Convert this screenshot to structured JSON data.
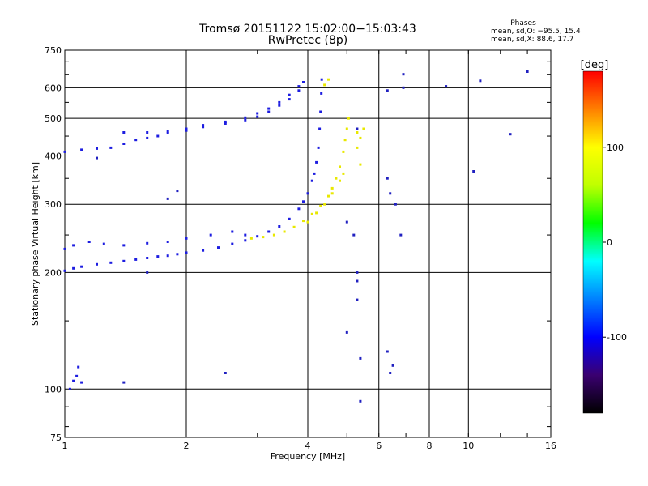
{
  "chart_data": {
    "type": "scatter",
    "title": "Tromsø 20151122 15:02:00−15:03:43",
    "subtitle": "RwPretec (8p)",
    "xlabel": "Frequency [MHz]",
    "ylabel": "Stationary phase Virtual Height [km]",
    "x_scale": "log",
    "y_scale": "log",
    "xlim": [
      1,
      16
    ],
    "ylim": [
      75,
      750
    ],
    "x_ticks": [
      1,
      2,
      4,
      6,
      8,
      10,
      16
    ],
    "y_ticks": [
      75,
      100,
      200,
      300,
      400,
      500,
      600,
      750
    ],
    "grid": true,
    "stats": {
      "heading": "Phases",
      "line_o": "mean, sd,O: −95.5, 15.4",
      "line_x": "mean, sd,X:  88.6, 17.7"
    },
    "colorbar": {
      "label": "[deg]",
      "min": -180,
      "max": 180,
      "ticks": [
        100,
        0,
        -100
      ],
      "colors": [
        "#000000",
        "#3a0070",
        "#0000ff",
        "#0080ff",
        "#00ffff",
        "#00ff00",
        "#c0ff00",
        "#ffff00",
        "#ff8000",
        "#ff0000"
      ]
    },
    "series": [
      {
        "mode": "O",
        "mean_phase": -95.5,
        "color": "#1d1de0",
        "points": [
          [
            1.0,
            202
          ],
          [
            1.05,
            205
          ],
          [
            1.1,
            207
          ],
          [
            1.2,
            210
          ],
          [
            1.3,
            212
          ],
          [
            1.4,
            214
          ],
          [
            1.5,
            216
          ],
          [
            1.6,
            218
          ],
          [
            1.7,
            220
          ],
          [
            1.8,
            221
          ],
          [
            1.9,
            223
          ],
          [
            2.0,
            225
          ],
          [
            2.2,
            228
          ],
          [
            2.4,
            232
          ],
          [
            2.6,
            237
          ],
          [
            2.8,
            242
          ],
          [
            3.0,
            248
          ],
          [
            3.2,
            255
          ],
          [
            3.4,
            263
          ],
          [
            3.6,
            275
          ],
          [
            3.8,
            292
          ],
          [
            3.9,
            305
          ],
          [
            4.0,
            320
          ],
          [
            4.1,
            345
          ],
          [
            4.15,
            360
          ],
          [
            4.2,
            385
          ],
          [
            4.25,
            420
          ],
          [
            4.28,
            470
          ],
          [
            4.3,
            520
          ],
          [
            4.32,
            580
          ],
          [
            4.33,
            630
          ],
          [
            1.0,
            230
          ],
          [
            1.05,
            235
          ],
          [
            1.15,
            240
          ],
          [
            1.25,
            237
          ],
          [
            1.4,
            235
          ],
          [
            1.6,
            238
          ],
          [
            1.8,
            240
          ],
          [
            2.0,
            245
          ],
          [
            2.3,
            250
          ],
          [
            2.6,
            255
          ],
          [
            2.8,
            250
          ],
          [
            1.0,
            410
          ],
          [
            1.1,
            415
          ],
          [
            1.2,
            418
          ],
          [
            1.3,
            420
          ],
          [
            1.4,
            430
          ],
          [
            1.5,
            440
          ],
          [
            1.6,
            445
          ],
          [
            1.7,
            450
          ],
          [
            1.8,
            458
          ],
          [
            2.0,
            465
          ],
          [
            2.2,
            475
          ],
          [
            2.5,
            485
          ],
          [
            2.8,
            495
          ],
          [
            3.0,
            505
          ],
          [
            3.2,
            520
          ],
          [
            3.4,
            540
          ],
          [
            3.6,
            560
          ],
          [
            3.8,
            590
          ],
          [
            3.9,
            620
          ],
          [
            1.4,
            460
          ],
          [
            1.6,
            460
          ],
          [
            1.8,
            463
          ],
          [
            2.0,
            470
          ],
          [
            2.2,
            480
          ],
          [
            2.5,
            490
          ],
          [
            2.8,
            502
          ],
          [
            3.0,
            515
          ],
          [
            3.2,
            530
          ],
          [
            3.4,
            550
          ],
          [
            3.6,
            575
          ],
          [
            3.8,
            605
          ],
          [
            1.03,
            100
          ],
          [
            1.05,
            105
          ],
          [
            1.07,
            108
          ],
          [
            1.1,
            104
          ],
          [
            1.08,
            114
          ]
        ]
      },
      {
        "mode": "X",
        "mean_phase": 88.6,
        "color": "#e8e800",
        "points": [
          [
            2.9,
            245
          ],
          [
            3.1,
            247
          ],
          [
            3.3,
            250
          ],
          [
            3.5,
            255
          ],
          [
            3.7,
            262
          ],
          [
            3.9,
            272
          ],
          [
            4.1,
            283
          ],
          [
            4.3,
            297
          ],
          [
            4.5,
            315
          ],
          [
            4.6,
            330
          ],
          [
            4.7,
            350
          ],
          [
            4.8,
            375
          ],
          [
            4.9,
            410
          ],
          [
            4.95,
            440
          ],
          [
            5.0,
            470
          ],
          [
            5.05,
            500
          ],
          [
            4.0,
            270
          ],
          [
            4.2,
            285
          ],
          [
            4.4,
            300
          ],
          [
            4.6,
            320
          ],
          [
            4.8,
            345
          ],
          [
            4.9,
            360
          ],
          [
            5.3,
            420
          ],
          [
            5.4,
            445
          ],
          [
            5.5,
            470
          ],
          [
            5.3,
            460
          ],
          [
            5.4,
            380
          ],
          [
            4.5,
            630
          ],
          [
            4.4,
            610
          ]
        ]
      },
      {
        "mode": "noise",
        "color": "#2020c0",
        "points": [
          [
            5.2,
            250
          ],
          [
            5.3,
            200
          ],
          [
            5.3,
            190
          ],
          [
            5.3,
            170
          ],
          [
            5.4,
            120
          ],
          [
            5.4,
            93
          ],
          [
            5.0,
            140
          ],
          [
            5.0,
            270
          ],
          [
            5.3,
            470
          ],
          [
            6.3,
            350
          ],
          [
            6.4,
            320
          ],
          [
            6.6,
            300
          ],
          [
            6.8,
            250
          ],
          [
            6.3,
            125
          ],
          [
            6.4,
            110
          ],
          [
            6.5,
            115
          ],
          [
            6.9,
            650
          ],
          [
            6.9,
            600
          ],
          [
            6.3,
            590
          ],
          [
            8.8,
            605
          ],
          [
            10.3,
            365
          ],
          [
            10.7,
            625
          ],
          [
            14.0,
            660
          ],
          [
            12.7,
            455
          ],
          [
            2.5,
            110
          ],
          [
            1.4,
            104
          ],
          [
            1.9,
            325
          ],
          [
            1.8,
            310
          ],
          [
            1.6,
            200
          ],
          [
            1.2,
            395
          ]
        ]
      }
    ]
  }
}
